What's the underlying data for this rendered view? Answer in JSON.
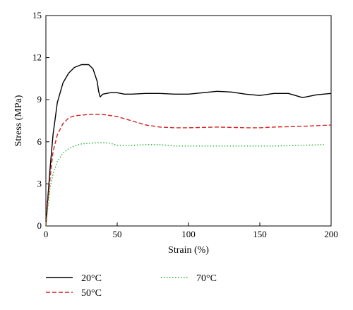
{
  "chart_data": {
    "type": "line",
    "title": "",
    "xlabel": "Strain (%)",
    "ylabel": "Stress (MPa)",
    "xlim": [
      0,
      200
    ],
    "ylim": [
      0,
      15
    ],
    "x_ticks": [
      0,
      50,
      100,
      150,
      200
    ],
    "y_ticks": [
      0,
      3,
      6,
      9,
      12,
      15
    ],
    "grid": false,
    "legend_position": "bottom",
    "series": [
      {
        "name": "20°C",
        "color": "#000000",
        "dash": "solid",
        "points": [
          [
            0,
            0
          ],
          [
            1,
            1.5
          ],
          [
            3,
            4.2
          ],
          [
            5,
            6.5
          ],
          [
            8,
            8.8
          ],
          [
            12,
            10.2
          ],
          [
            16,
            10.9
          ],
          [
            20,
            11.3
          ],
          [
            25,
            11.5
          ],
          [
            30,
            11.5
          ],
          [
            33,
            11.2
          ],
          [
            36,
            10.3
          ],
          [
            37,
            9.6
          ],
          [
            38,
            9.2
          ],
          [
            40,
            9.4
          ],
          [
            45,
            9.5
          ],
          [
            50,
            9.5
          ],
          [
            55,
            9.4
          ],
          [
            60,
            9.4
          ],
          [
            70,
            9.45
          ],
          [
            80,
            9.45
          ],
          [
            90,
            9.4
          ],
          [
            100,
            9.4
          ],
          [
            110,
            9.5
          ],
          [
            120,
            9.6
          ],
          [
            130,
            9.55
          ],
          [
            140,
            9.4
          ],
          [
            150,
            9.3
          ],
          [
            160,
            9.45
          ],
          [
            170,
            9.45
          ],
          [
            180,
            9.15
          ],
          [
            190,
            9.35
          ],
          [
            200,
            9.45
          ]
        ]
      },
      {
        "name": "50°C",
        "color": "#d42020",
        "dash": "dashed",
        "points": [
          [
            0,
            0
          ],
          [
            1,
            1.2
          ],
          [
            3,
            3.5
          ],
          [
            5,
            5.3
          ],
          [
            8,
            6.5
          ],
          [
            12,
            7.3
          ],
          [
            16,
            7.7
          ],
          [
            20,
            7.85
          ],
          [
            30,
            7.95
          ],
          [
            40,
            7.95
          ],
          [
            50,
            7.8
          ],
          [
            60,
            7.5
          ],
          [
            70,
            7.2
          ],
          [
            80,
            7.05
          ],
          [
            90,
            7.0
          ],
          [
            100,
            7.0
          ],
          [
            120,
            7.05
          ],
          [
            140,
            7.0
          ],
          [
            150,
            7.0
          ],
          [
            160,
            7.05
          ],
          [
            180,
            7.1
          ],
          [
            200,
            7.2
          ]
        ]
      },
      {
        "name": "70°C",
        "color": "#22b030",
        "dash": "dotted",
        "points": [
          [
            0,
            0
          ],
          [
            1,
            1.0
          ],
          [
            3,
            2.8
          ],
          [
            5,
            3.7
          ],
          [
            8,
            4.6
          ],
          [
            12,
            5.2
          ],
          [
            16,
            5.5
          ],
          [
            20,
            5.7
          ],
          [
            25,
            5.85
          ],
          [
            30,
            5.9
          ],
          [
            40,
            5.95
          ],
          [
            45,
            5.9
          ],
          [
            50,
            5.75
          ],
          [
            60,
            5.75
          ],
          [
            70,
            5.8
          ],
          [
            80,
            5.8
          ],
          [
            90,
            5.7
          ],
          [
            100,
            5.7
          ],
          [
            120,
            5.7
          ],
          [
            140,
            5.7
          ],
          [
            160,
            5.7
          ],
          [
            180,
            5.75
          ],
          [
            195,
            5.8
          ]
        ]
      }
    ]
  }
}
